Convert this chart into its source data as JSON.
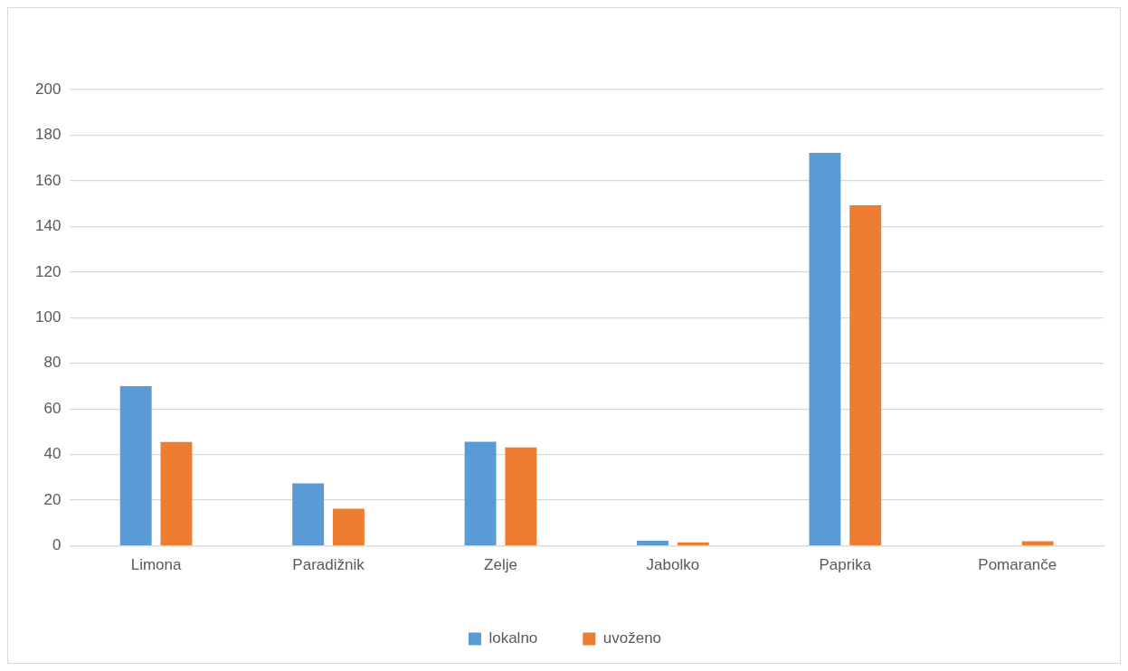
{
  "chart_data": {
    "type": "bar",
    "categories": [
      "Limona",
      "Paradižnik",
      "Zelje",
      "Jabolko",
      "Paprika",
      "Pomaranče"
    ],
    "series": [
      {
        "name": "lokalno",
        "color": "#5b9bd5",
        "values": [
          70,
          27.4,
          45.6,
          2.2,
          172.3,
          0
        ]
      },
      {
        "name": "uvoženo",
        "color": "#ed7d31",
        "values": [
          45.5,
          16.3,
          43.1,
          1.5,
          149.3,
          2
        ]
      }
    ],
    "ylim": [
      0,
      200
    ],
    "yticks": [
      0,
      20,
      40,
      60,
      80,
      100,
      120,
      140,
      160,
      180,
      200
    ],
    "grid": "y",
    "legend": "bottom"
  }
}
